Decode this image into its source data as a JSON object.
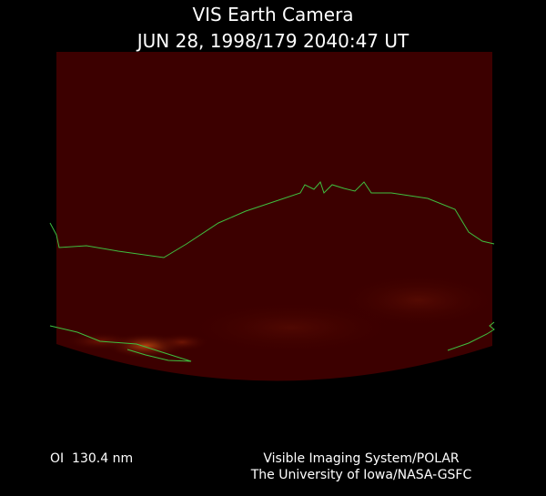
{
  "header": {
    "title": "VIS Earth Camera",
    "timestamp": "JUN 28, 1998/179 2040:47 UT"
  },
  "footer": {
    "filter": "OI  130.4 nm",
    "instrument": "Visible Imaging System/POLAR",
    "credit": "The University of Iowa/NASA-GSFC"
  }
}
